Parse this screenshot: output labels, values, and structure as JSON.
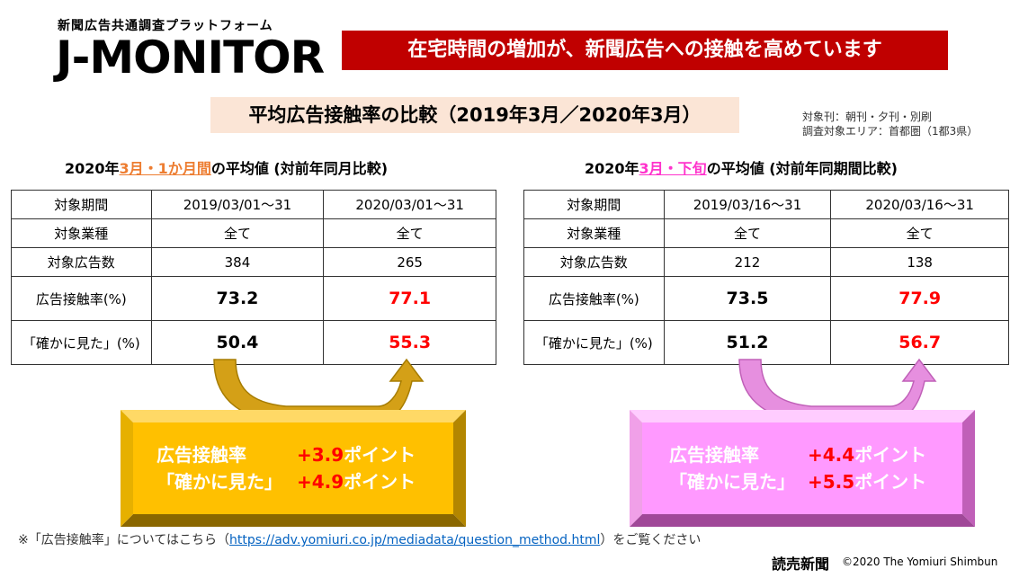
{
  "logo": {
    "subtitle": "新聞広告共通調査プラットフォーム",
    "name": "J-MONITOR"
  },
  "headline": "在宅時間の増加が、新聞広告への接触を高めています",
  "subtitle": "平均広告接触率の比較（2019年3月／2020年3月）",
  "notes": [
    "対象刊：朝刊・夕刊・別刷",
    "調査対象エリア：首都圏（1都3県）"
  ],
  "left": {
    "heading": {
      "pre": "2020年",
      "hl": "3月・1か月間",
      "post": "の平均値 (対前年同月比較)"
    },
    "table": {
      "header": [
        "対象期間",
        "2019/03/01～31",
        "2020/03/01～31"
      ],
      "rows": [
        [
          "対象業種",
          "全て",
          "全て"
        ],
        [
          "対象広告数",
          "384",
          "265"
        ],
        [
          "広告接触率(%)",
          "73.2",
          "77.1"
        ],
        [
          "「確かに見た」(%)",
          "50.4",
          "55.3"
        ]
      ]
    },
    "summary": [
      {
        "label": "広告接触率",
        "num": "+3.9",
        "unit": "ポイント"
      },
      {
        "label": "「確かに見た」",
        "num": "+4.9",
        "unit": "ポイント"
      }
    ]
  },
  "right": {
    "heading": {
      "pre": "2020年",
      "hl": "3月・下旬",
      "post": "の平均値 (対前年同期間比較)"
    },
    "table": {
      "header": [
        "対象期間",
        "2019/03/16～31",
        "2020/03/16～31"
      ],
      "rows": [
        [
          "対象業種",
          "全て",
          "全て"
        ],
        [
          "対象広告数",
          "212",
          "138"
        ],
        [
          "広告接触率(%)",
          "73.5",
          "77.9"
        ],
        [
          "「確かに見た」(%)",
          "51.2",
          "56.7"
        ]
      ]
    },
    "summary": [
      {
        "label": "広告接触率",
        "num": "+4.4",
        "unit": "ポイント"
      },
      {
        "label": "「確かに見た」",
        "num": "+5.5",
        "unit": "ポイント"
      }
    ]
  },
  "footnote": {
    "pre": "※「広告接触率」についてはこちら（",
    "link": "https://adv.yomiuri.co.jp/mediadata/question_method.html",
    "post": "）をご覧ください"
  },
  "brand": "読売新聞",
  "copyright": "©2020  The Yomiuri Shimbun",
  "colors": {
    "headline_bg": "#c00000",
    "subtitle_bg": "#fbe5d6",
    "gold": "#ffc000",
    "gold_dark": "#c79100",
    "pink": "#ff99ff",
    "pink_dark": "#d060c8",
    "accent_red": "#ff0000"
  }
}
